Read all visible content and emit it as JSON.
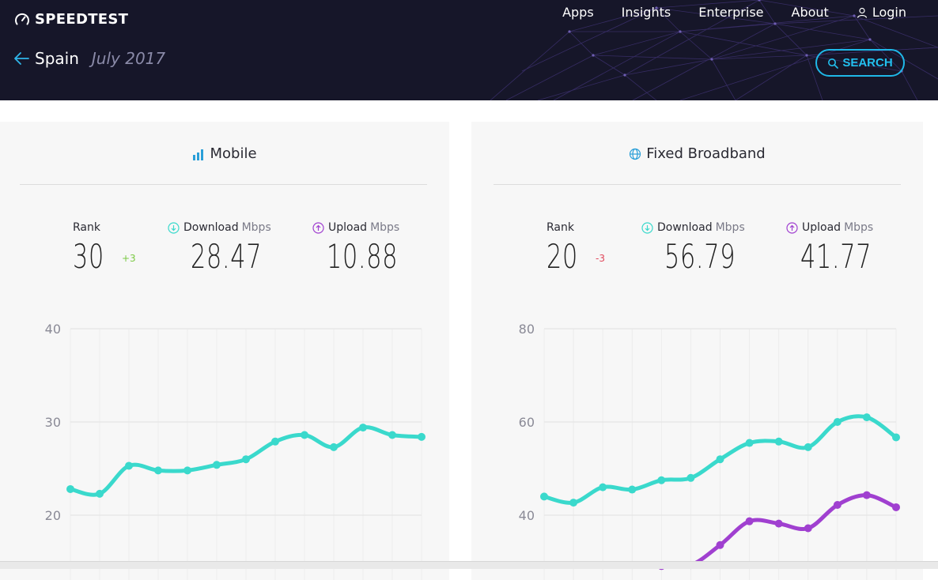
{
  "header": {
    "brand": "SPEEDTEST",
    "nav": {
      "apps": "Apps",
      "insights": "Insights",
      "enterprise": "Enterprise",
      "about": "About",
      "login": "Login"
    },
    "country": "Spain",
    "period": "July 2017",
    "search_label": "SEARCH"
  },
  "colors": {
    "download": "#3ad9cc",
    "upload": "#a040d0",
    "up_change": "#7ac943",
    "down_change": "#e0475a",
    "accent": "#1fb8e8",
    "header_bg": "#161629"
  },
  "mobile": {
    "title": "Mobile",
    "icon": "signal-bars-icon",
    "rank_label": "Rank",
    "rank": "30",
    "rank_change": "+3",
    "download_label": "Download",
    "upload_label": "Upload",
    "unit": "Mbps",
    "download": "28.47",
    "upload": "10.88"
  },
  "fixed": {
    "title": "Fixed Broadband",
    "icon": "globe-icon",
    "rank_label": "Rank",
    "rank": "20",
    "rank_change": "-3",
    "download_label": "Download",
    "upload_label": "Upload",
    "unit": "Mbps",
    "download": "56.79",
    "upload": "41.77"
  },
  "chart_data": [
    {
      "type": "line",
      "chart": "mobile",
      "y_ticks": [
        40,
        30,
        20
      ],
      "ylim": [
        17,
        40
      ],
      "grid": true,
      "series": [
        {
          "color": "#3ad9cc",
          "values": [
            22.8,
            22.3,
            25.3,
            24.8,
            24.8,
            25.4,
            26.0,
            27.9,
            28.6,
            27.3,
            29.4,
            28.6,
            28.4
          ]
        }
      ]
    },
    {
      "type": "line",
      "chart": "fixed",
      "y_ticks": [
        80,
        60,
        40
      ],
      "ylim": [
        34,
        80
      ],
      "grid": true,
      "series": [
        {
          "color": "#3ad9cc",
          "values": [
            44.0,
            42.7,
            46.0,
            45.5,
            47.5,
            48.0,
            52.0,
            55.5,
            55.8,
            54.6,
            60.0,
            61.0,
            56.7
          ]
        },
        {
          "color": "#a040d0",
          "values": [
            null,
            null,
            null,
            null,
            29.1,
            29.3,
            33.6,
            38.7,
            38.2,
            37.2,
            42.2,
            44.3,
            41.7
          ]
        }
      ]
    }
  ]
}
